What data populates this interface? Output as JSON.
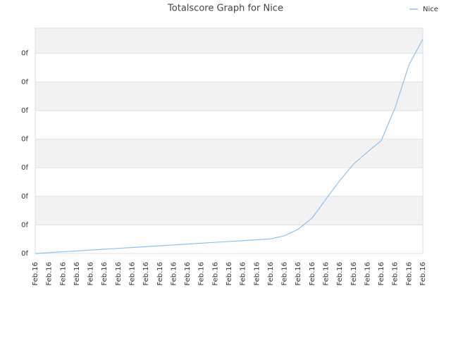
{
  "chart_data": {
    "type": "line",
    "title": "Totalscore Graph for Nice",
    "categories": [
      "Feb.16",
      "Feb.16",
      "Feb.16",
      "Feb.16",
      "Feb.16",
      "Feb.16",
      "Feb.16",
      "Feb.16",
      "Feb.16",
      "Feb.16",
      "Feb.16",
      "Feb.16",
      "Feb.16",
      "Feb.16",
      "Feb.16",
      "Feb.16",
      "Feb.16",
      "Feb.16",
      "Feb.16",
      "Feb.16",
      "Feb.16",
      "Feb.16",
      "Feb.16",
      "Feb.16",
      "Feb.16",
      "Feb.16",
      "Feb.16",
      "Feb.16",
      "Feb.16"
    ],
    "series": [
      {
        "name": "Nice",
        "color": "#8ec3f0",
        "values": [
          0,
          0.03,
          0.06,
          0.09,
          0.12,
          0.15,
          0.18,
          0.21,
          0.24,
          0.27,
          0.3,
          0.33,
          0.36,
          0.39,
          0.42,
          0.45,
          0.48,
          0.51,
          0.62,
          0.85,
          1.24,
          1.9,
          2.55,
          3.13,
          3.55,
          3.95,
          5.1,
          6.6,
          7.49
        ]
      }
    ],
    "ylim": [
      0,
      7.88
    ],
    "yticks": [
      {
        "value": 0,
        "label": "0f"
      },
      {
        "value": 1,
        "label": "0f"
      },
      {
        "value": 2,
        "label": "0f"
      },
      {
        "value": 3,
        "label": "0f"
      },
      {
        "value": 4,
        "label": "0f"
      },
      {
        "value": 5,
        "label": "0f"
      },
      {
        "value": 6,
        "label": "0f"
      },
      {
        "value": 7,
        "label": "0f"
      }
    ],
    "grid": true,
    "legend": "top-right"
  }
}
